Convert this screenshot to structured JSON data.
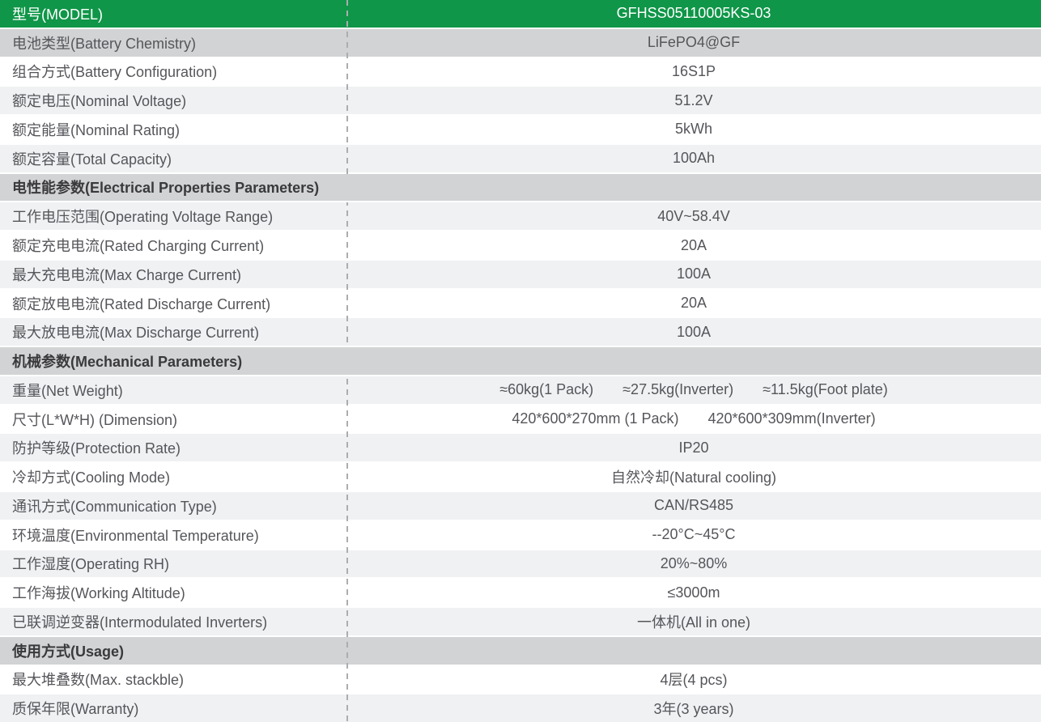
{
  "colors": {
    "header_green": "#0f9648",
    "section_gray": "#d1d3d4",
    "zebra_light_gray": "#f0f1f3",
    "row_white": "#ffffff",
    "text_gray": "#55565a",
    "section_text": "#3a3a3c",
    "divider_gray": "#abadaf",
    "header_text": "#ffffff"
  },
  "table": {
    "header": {
      "label": "型号(MODEL)",
      "value": "GFHSS05110005KS-03"
    },
    "rows": [
      {
        "type": "data",
        "shade": "dark",
        "label": "电池类型(Battery Chemistry)",
        "value": "LiFePO4@GF"
      },
      {
        "type": "data",
        "shade": "white",
        "label": "组合方式(Battery Configuration)",
        "value": "16S1P"
      },
      {
        "type": "data",
        "shade": "light",
        "label": "额定电压(Nominal Voltage)",
        "value": "51.2V"
      },
      {
        "type": "data",
        "shade": "white",
        "label": "额定能量(Nominal Rating)",
        "value": "5kWh"
      },
      {
        "type": "data",
        "shade": "light",
        "label": "额定容量(Total Capacity)",
        "value": "100Ah"
      },
      {
        "type": "section",
        "divider_visible": false,
        "label": "电性能参数(Electrical Properties Parameters)"
      },
      {
        "type": "data",
        "shade": "light",
        "label": "工作电压范围(Operating Voltage Range)",
        "value": "40V~58.4V"
      },
      {
        "type": "data",
        "shade": "white",
        "label": "额定充电电流(Rated Charging Current)",
        "value": "20A"
      },
      {
        "type": "data",
        "shade": "light",
        "label": "最大充电电流(Max Charge Current)",
        "value": "100A"
      },
      {
        "type": "data",
        "shade": "white",
        "label": "额定放电电流(Rated Discharge Current)",
        "value": "20A"
      },
      {
        "type": "data",
        "shade": "light",
        "label": "最大放电电流(Max Discharge Current)",
        "value": "100A"
      },
      {
        "type": "section",
        "divider_visible": false,
        "label": "机械参数(Mechanical Parameters)"
      },
      {
        "type": "data",
        "shade": "light",
        "label": "重量(Net Weight)",
        "value": "≈60kg(1 Pack)  ≈27.5kg(Inverter)  ≈11.5kg(Foot plate)"
      },
      {
        "type": "data",
        "shade": "white",
        "label": "尺寸(L*W*H) (Dimension)",
        "value": "420*600*270mm (1 Pack)  420*600*309mm(Inverter)"
      },
      {
        "type": "data",
        "shade": "light",
        "label": "防护等级(Protection Rate)",
        "value": "IP20"
      },
      {
        "type": "data",
        "shade": "white",
        "label": "冷却方式(Cooling Mode)",
        "value": "自然冷却(Natural cooling)"
      },
      {
        "type": "data",
        "shade": "light",
        "label": "通讯方式(Communication Type)",
        "value": "CAN/RS485"
      },
      {
        "type": "data",
        "shade": "white",
        "label": "环境温度(Environmental Temperature)",
        "value": "--20°C~45°C"
      },
      {
        "type": "data",
        "shade": "light",
        "label": "工作湿度(Operating RH)",
        "value": "20%~80%"
      },
      {
        "type": "data",
        "shade": "white",
        "label": "工作海拔(Working Altitude)",
        "value": "≤3000m"
      },
      {
        "type": "data",
        "shade": "light",
        "label": "已联调逆变器(Intermodulated Inverters)",
        "value": "一体机(All in one)"
      },
      {
        "type": "section",
        "divider_visible": true,
        "label": "使用方式(Usage)"
      },
      {
        "type": "data",
        "shade": "white",
        "label": "最大堆叠数(Max. stackble)",
        "value": "4层(4 pcs)"
      },
      {
        "type": "data",
        "shade": "light",
        "label": "质保年限(Warranty)",
        "value": "3年(3 years)"
      }
    ]
  }
}
